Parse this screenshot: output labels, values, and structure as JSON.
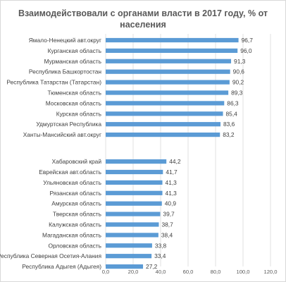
{
  "chart_data": {
    "type": "bar",
    "orientation": "horizontal",
    "title": "Взаимодействовали с органами власти в 2017 году, % от населения",
    "xlim": [
      0,
      120
    ],
    "xticks": [
      "0,0",
      "20,0",
      "40,0",
      "60,0",
      "80,0",
      "100,0",
      "120,0"
    ],
    "grid": true,
    "bar_color": "#5b9bd5",
    "groups": [
      {
        "categories": [
          "Ямало-Ненецкий авт.округ",
          "Курганская область",
          "Мурманская область",
          "Республика Башкортостан",
          "Республика Татарстан (Татарстан)",
          "Тюменская область",
          "Московская область",
          "Курская область",
          "Удмуртская Республика",
          "Ханты-Мансийский авт.округ"
        ],
        "values": [
          96.7,
          96.0,
          91.3,
          90.6,
          90.2,
          89.3,
          86.3,
          85.4,
          83.6,
          83.2
        ],
        "labels": [
          "96,7",
          "96,0",
          "91,3",
          "90,6",
          "90,2",
          "89,3",
          "86,3",
          "85,4",
          "83,6",
          "83,2"
        ]
      },
      {
        "categories": [
          "Хабаровский край",
          "Еврейская авт.область",
          "Ульяновская область",
          "Рязанская область",
          "Амурская область",
          "Тверская область",
          "Калужская область",
          "Магаданская область",
          "Орловская область",
          "Республика Северная Осетия-Алания",
          "Республика Адыгея (Адыгея)"
        ],
        "values": [
          44.2,
          41.7,
          41.3,
          41.3,
          40.9,
          39.7,
          38.7,
          38.4,
          33.8,
          33.4,
          27.2
        ],
        "labels": [
          "44,2",
          "41,7",
          "41,3",
          "41,3",
          "40,9",
          "39,7",
          "38,7",
          "38,4",
          "33,8",
          "33,4",
          "27,2"
        ]
      }
    ]
  }
}
